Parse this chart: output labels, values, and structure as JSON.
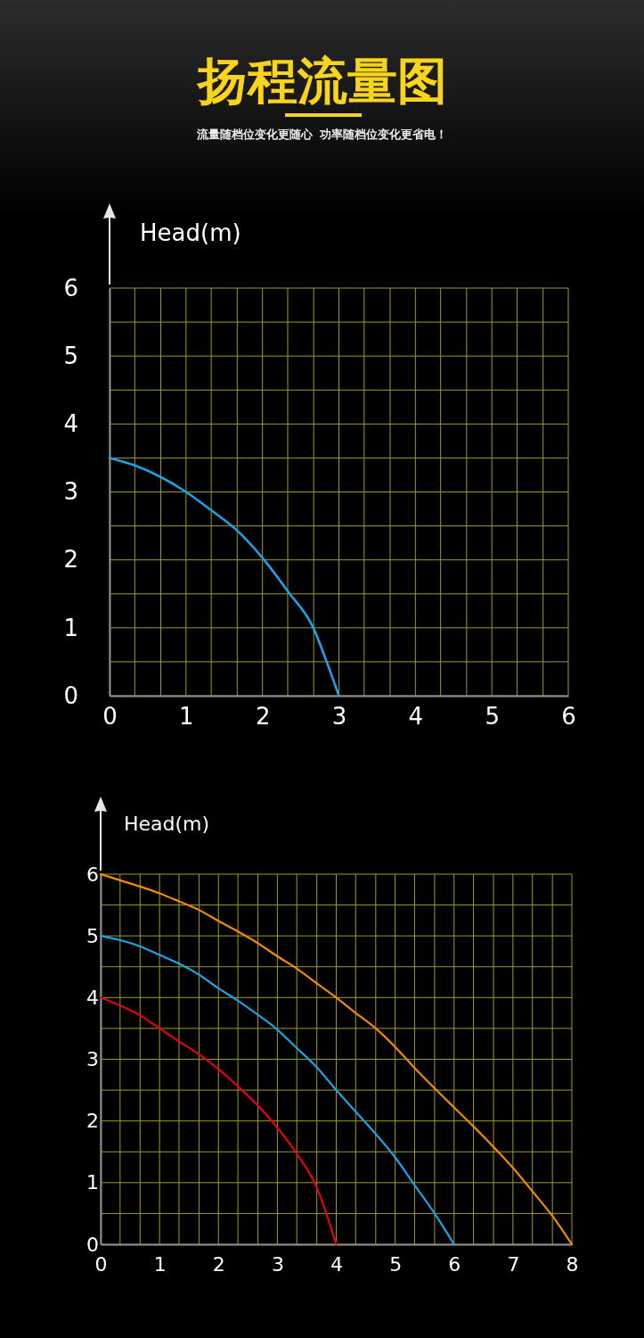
{
  "chart_data": [
    {
      "type": "line",
      "title": "扬程流量图",
      "subtitle": "流量随档位变化更随心  功率随档位变化更省电！",
      "ylabel": "Head(m)",
      "xlim": [
        0,
        6
      ],
      "ylim": [
        0,
        6
      ],
      "xticks": [
        0,
        {
          "value": 0.33,
          "label": null
        },
        {
          "value": 0.67,
          "label": null
        },
        1,
        {
          "value": 1.33,
          "label": null
        },
        {
          "value": 1.67,
          "label": null
        },
        2,
        {
          "value": 2.33,
          "label": null
        },
        {
          "value": 2.67,
          "label": null
        },
        3,
        {
          "value": 3.33,
          "label": null
        },
        {
          "value": 3.67,
          "label": null
        },
        4,
        {
          "value": 4.33,
          "label": null
        },
        {
          "value": 4.67,
          "label": null
        },
        5,
        {
          "value": 5.33,
          "label": null
        },
        {
          "value": 5.67,
          "label": null
        },
        6
      ],
      "yticks": [
        0,
        {
          "value": 0.5,
          "label": null
        },
        1,
        {
          "value": 1.5,
          "label": null
        },
        2,
        {
          "value": 2.5,
          "label": null
        },
        3,
        {
          "value": 3.5,
          "label": null
        },
        4,
        {
          "value": 4.5,
          "label": null
        },
        5,
        {
          "value": 5.5,
          "label": null
        },
        6
      ],
      "grid": true,
      "series": [
        {
          "color": "#1aa3e6",
          "x": [
            0,
            0.33,
            0.67,
            1,
            1.33,
            1.67,
            2,
            2.33,
            2.67,
            2.83,
            3
          ],
          "values": [
            3.5,
            3.39,
            3.22,
            3.0,
            2.73,
            2.43,
            2.03,
            1.54,
            0.99,
            0.53,
            0
          ]
        }
      ]
    },
    {
      "type": "line",
      "ylabel": "Head(m)",
      "xlim": [
        0,
        8
      ],
      "ylim": [
        0,
        6
      ],
      "xticks": [
        0,
        {
          "value": 0.33,
          "label": null
        },
        {
          "value": 0.67,
          "label": null
        },
        1,
        {
          "value": 1.33,
          "label": null
        },
        {
          "value": 1.67,
          "label": null
        },
        2,
        {
          "value": 2.33,
          "label": null
        },
        {
          "value": 2.67,
          "label": null
        },
        3,
        {
          "value": 3.33,
          "label": null
        },
        {
          "value": 3.67,
          "label": null
        },
        4,
        {
          "value": 4.33,
          "label": null
        },
        {
          "value": 4.67,
          "label": null
        },
        5,
        {
          "value": 5.33,
          "label": null
        },
        {
          "value": 5.67,
          "label": null
        },
        6,
        {
          "value": 6.33,
          "label": null
        },
        {
          "value": 6.67,
          "label": null
        },
        7,
        {
          "value": 7.33,
          "label": null
        },
        {
          "value": 7.67,
          "label": null
        },
        8
      ],
      "yticks": [
        0,
        {
          "value": 0.5,
          "label": null
        },
        1,
        {
          "value": 1.5,
          "label": null
        },
        2,
        {
          "value": 2.5,
          "label": null
        },
        3,
        {
          "value": 3.5,
          "label": null
        },
        4,
        {
          "value": 4.5,
          "label": null
        },
        5,
        {
          "value": 5.5,
          "label": null
        },
        6
      ],
      "grid": true,
      "series": [
        {
          "color": "#e60012",
          "x": [
            0,
            0.33,
            0.67,
            1,
            1.33,
            1.67,
            2,
            2.33,
            2.67,
            3,
            3.33,
            3.67,
            3.85,
            4
          ],
          "values": [
            4.0,
            3.87,
            3.71,
            3.5,
            3.29,
            3.08,
            2.84,
            2.56,
            2.25,
            1.89,
            1.47,
            0.92,
            0.45,
            0
          ]
        },
        {
          "color": "#1aa3e8",
          "x": [
            0,
            0.33,
            0.67,
            1,
            1.33,
            1.67,
            2,
            2.33,
            2.67,
            3,
            3.33,
            3.67,
            4,
            4.33,
            4.67,
            5,
            5.33,
            5.67,
            6
          ],
          "values": [
            5.0,
            4.93,
            4.83,
            4.69,
            4.55,
            4.37,
            4.15,
            3.95,
            3.72,
            3.48,
            3.18,
            2.87,
            2.5,
            2.15,
            1.79,
            1.41,
            0.96,
            0.5,
            0
          ]
        },
        {
          "color": "#f08c00",
          "x": [
            0,
            0.33,
            0.67,
            1,
            1.33,
            1.67,
            2,
            2.33,
            2.67,
            3,
            3.33,
            3.67,
            4,
            4.33,
            4.67,
            5,
            5.33,
            5.67,
            6,
            6.33,
            6.67,
            7,
            7.33,
            7.67,
            8
          ],
          "values": [
            6.0,
            5.9,
            5.8,
            5.69,
            5.56,
            5.42,
            5.24,
            5.07,
            4.88,
            4.67,
            4.47,
            4.23,
            4.0,
            3.75,
            3.5,
            3.2,
            2.86,
            2.53,
            2.22,
            1.91,
            1.58,
            1.24,
            0.86,
            0.46,
            0
          ]
        }
      ]
    }
  ]
}
